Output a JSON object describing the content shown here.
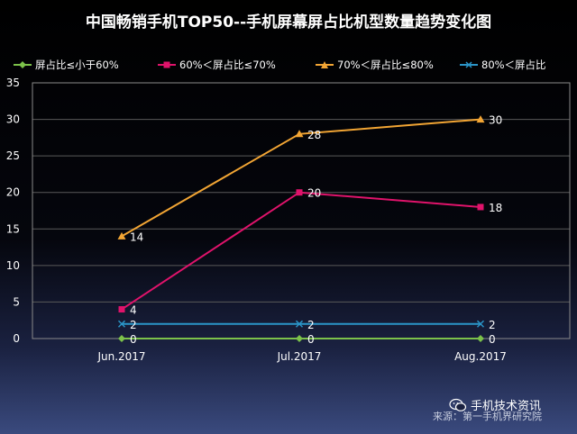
{
  "chart_data": {
    "type": "line",
    "title": "中国畅销手机TOP50--手机屏幕屏占比机型数量趋势变化图",
    "categories": [
      "Jun.2017",
      "Jul.2017",
      "Aug.2017"
    ],
    "ylim": [
      0,
      35
    ],
    "yticks": [
      0,
      5,
      10,
      15,
      20,
      25,
      30,
      35
    ],
    "grid": true,
    "legend_position": "top",
    "series": [
      {
        "name": "屏占比≤小于60%",
        "values": [
          0,
          0,
          0
        ],
        "color": "#7cc24a",
        "marker": "diamond"
      },
      {
        "name": "60%＜屏占比≤70%",
        "values": [
          4,
          20,
          18
        ],
        "color": "#e0136b",
        "marker": "square"
      },
      {
        "name": "70%＜屏占比≤80%",
        "values": [
          14,
          28,
          30
        ],
        "color": "#f2a534",
        "marker": "triangle"
      },
      {
        "name": "80%＜屏占比",
        "values": [
          2,
          2,
          2
        ],
        "color": "#2b95c8",
        "marker": "x"
      }
    ]
  },
  "footer": {
    "brand": "手机技术资讯",
    "source": "来源：第一手机界研究院"
  }
}
